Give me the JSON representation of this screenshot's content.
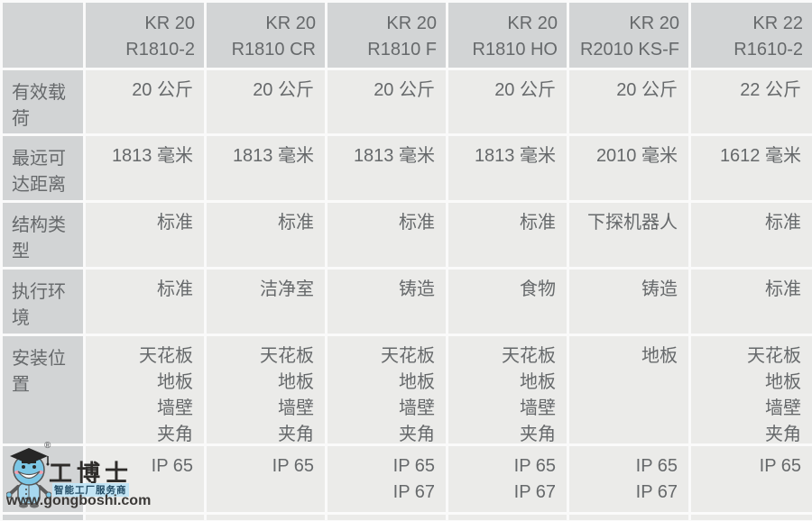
{
  "table": {
    "corner_label": "",
    "columns": [
      [
        "KR 20",
        "R1810-2"
      ],
      [
        "KR 20",
        "R1810 CR"
      ],
      [
        "KR 20",
        "R1810 F"
      ],
      [
        "KR 20",
        "R1810 HO"
      ],
      [
        "KR 20",
        "R2010 KS-F"
      ],
      [
        "KR 22",
        "R1610-2"
      ]
    ],
    "rows": [
      {
        "id": "payload",
        "label": "有效载荷",
        "cells": [
          [
            "20 公斤"
          ],
          [
            "20 公斤"
          ],
          [
            "20 公斤"
          ],
          [
            "20 公斤"
          ],
          [
            "20 公斤"
          ],
          [
            "22 公斤"
          ]
        ]
      },
      {
        "id": "max_reach",
        "label": "最远可达距离",
        "cells": [
          [
            "1813 毫米"
          ],
          [
            "1813 毫米"
          ],
          [
            "1813 毫米"
          ],
          [
            "1813 毫米"
          ],
          [
            "2010 毫米"
          ],
          [
            "1612 毫米"
          ]
        ]
      },
      {
        "id": "structure_type",
        "label": "结构类型",
        "cells": [
          [
            "标准"
          ],
          [
            "标准"
          ],
          [
            "标准"
          ],
          [
            "标准"
          ],
          [
            "下探机器人"
          ],
          [
            "标准"
          ]
        ]
      },
      {
        "id": "environment",
        "label": "执行环境",
        "cells": [
          [
            "标准"
          ],
          [
            "洁净室"
          ],
          [
            "铸造"
          ],
          [
            "食物"
          ],
          [
            "铸造"
          ],
          [
            "标准"
          ]
        ]
      },
      {
        "id": "mounting_position",
        "label": "安装位置",
        "cells": [
          [
            "天花板",
            "地板",
            "墙壁",
            "夹角"
          ],
          [
            "天花板",
            "地板",
            "墙壁",
            "夹角"
          ],
          [
            "天花板",
            "地板",
            "墙壁",
            "夹角"
          ],
          [
            "天花板",
            "地板",
            "墙壁",
            "夹角"
          ],
          [
            "地板"
          ],
          [
            "天花板",
            "地板",
            "墙壁",
            "夹角"
          ]
        ]
      },
      {
        "id": "protection_rating",
        "label": "",
        "cells": [
          [
            "IP 65"
          ],
          [
            "IP 65"
          ],
          [
            "IP 65",
            "IP 67"
          ],
          [
            "IP 65",
            "IP 67"
          ],
          [
            "IP 65",
            "IP 67"
          ],
          [
            "IP 65"
          ]
        ]
      }
    ]
  },
  "watermark": {
    "brand": "工博士",
    "registered": "®",
    "tagline": "智能工厂服务商",
    "url": "www.gongboshi.com"
  },
  "colors": {
    "header_bg": "#d2d4d5",
    "cell_bg": "#ebebe9",
    "text": "#66696b",
    "gap": "#fafafa",
    "mascot_blue": "#7cc7e6",
    "tagline_bg": "#c2e4f4"
  }
}
